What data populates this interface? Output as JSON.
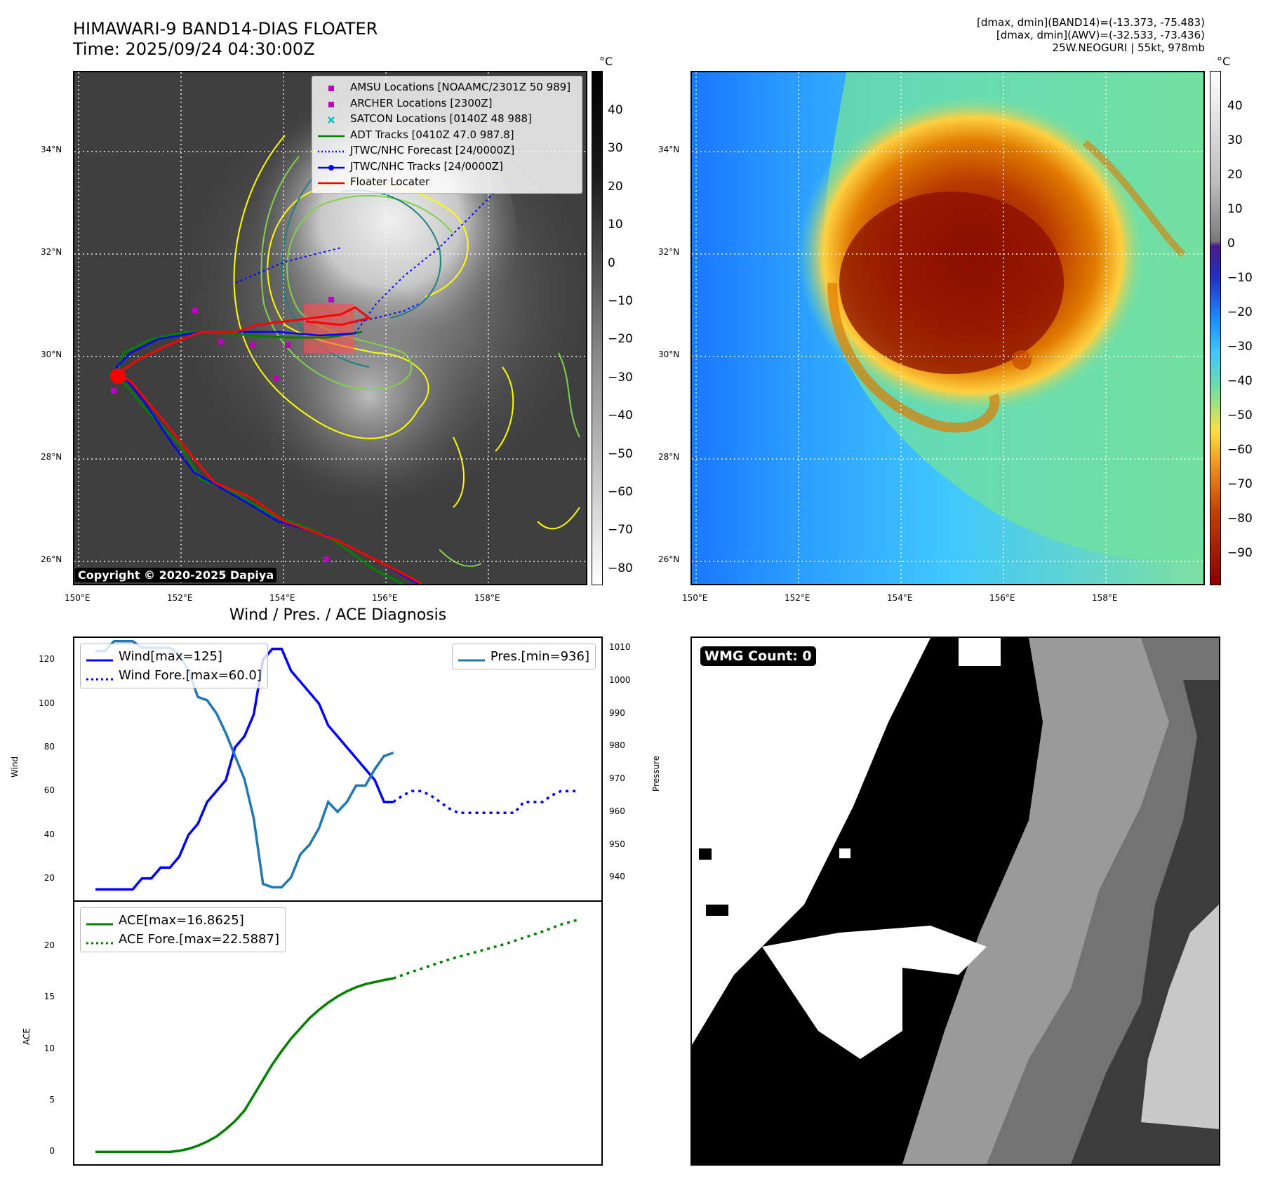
{
  "header": {
    "title_line1": "HIMAWARI-9 BAND14-DIAS FLOATER",
    "title_line2": "Time: 2025/09/24 04:30:00Z",
    "meta_line1": "[dmax, dmin](BAND14)=(-13.373, -75.483)",
    "meta_line2": "[dmax, dmin](AWV)=(-32.533, -73.436)",
    "meta_line3": "25W.NEOGURI | 55kt, 978mb"
  },
  "maps": {
    "lat_labels": [
      "34°N",
      "32°N",
      "30°N",
      "28°N",
      "26°N"
    ],
    "lon_labels": [
      "150°E",
      "152°E",
      "154°E",
      "156°E",
      "158°E"
    ],
    "left_cbar": {
      "unit": "°C",
      "ticks": [
        "40",
        "30",
        "20",
        "10",
        "0",
        "−10",
        "−20",
        "−30",
        "−40",
        "−50",
        "−60",
        "−70",
        "−80"
      ]
    },
    "right_cbar": {
      "unit": "°C",
      "ticks": [
        "40",
        "30",
        "20",
        "10",
        "0",
        "−10",
        "−20",
        "−30",
        "−40",
        "−50",
        "−60",
        "−70",
        "−80",
        "−90"
      ]
    },
    "legend": [
      {
        "label": "AMSU Locations [NOAAMC/2301Z 50 989]",
        "color": "#bf00bf",
        "kind": "square"
      },
      {
        "label": "ARCHER Locations [2300Z]",
        "color": "#bf00bf",
        "kind": "square"
      },
      {
        "label": "SATCON Locations [0140Z 48 988]",
        "color": "#00bfbf",
        "kind": "cross"
      },
      {
        "label": "ADT Tracks [0410Z 47.0 987.8]",
        "color": "#008000",
        "kind": "line"
      },
      {
        "label": "JTWC/NHC Forecast [24/0000Z]",
        "color": "#0000ff",
        "kind": "dotted"
      },
      {
        "label": "JTWC/NHC Tracks [24/0000Z]",
        "color": "#0000ff",
        "kind": "linedot"
      },
      {
        "label": "Floater Locater",
        "color": "#ff0000",
        "kind": "line"
      }
    ],
    "copyright": "Copyright © 2020-2025 Dapiya"
  },
  "diagnosis": {
    "title": "Wind / Pres. / ACE Diagnosis",
    "wind_ylabel": "Wind",
    "pres_ylabel": "Pressure",
    "ace_ylabel": "ACE",
    "wind_ticks": [
      "120",
      "100",
      "80",
      "60",
      "40",
      "20"
    ],
    "pres_ticks": [
      "1010",
      "1000",
      "990",
      "980",
      "970",
      "960",
      "950",
      "940"
    ],
    "ace_ticks": [
      "20",
      "15",
      "10",
      "5",
      "0"
    ],
    "legend_wind": "Wind[max=125]",
    "legend_wind_fore": "Wind Fore.[max=60.0]",
    "legend_pres": "Pres.[min=936]",
    "legend_ace": "ACE[max=16.8625]",
    "legend_ace_fore": "ACE Fore.[max=22.5887]"
  },
  "wmg": {
    "label": "WMG Count: 0"
  },
  "colors": {
    "wind": "#0000ff",
    "pres": "#1f77b4",
    "ace": "#008000",
    "floater": "#ff0000"
  },
  "chart_data": [
    {
      "type": "line",
      "title": "Wind / Pres. / ACE Diagnosis",
      "ylabel": "Wind",
      "ylim": [
        10,
        130
      ],
      "series": [
        {
          "name": "Wind[max=125]",
          "axis": "left",
          "style": "solid",
          "x": [
            0,
            1,
            2,
            3,
            4,
            5,
            6,
            7,
            8,
            9,
            10,
            11,
            12,
            13,
            14,
            15,
            16,
            17,
            18,
            19,
            20,
            21,
            22,
            23,
            24,
            25,
            26,
            27,
            28,
            29,
            30,
            31,
            32
          ],
          "y": [
            15,
            15,
            15,
            15,
            15,
            20,
            20,
            25,
            25,
            30,
            40,
            45,
            55,
            60,
            65,
            80,
            85,
            95,
            120,
            125,
            125,
            115,
            110,
            105,
            100,
            90,
            85,
            80,
            75,
            70,
            65,
            55,
            55
          ]
        },
        {
          "name": "Wind Fore.[max=60.0]",
          "axis": "left",
          "style": "dotted",
          "x": [
            32,
            33,
            34,
            35,
            36,
            37,
            38,
            39,
            40,
            41,
            42,
            43,
            44,
            45,
            46,
            47,
            48,
            49,
            50,
            51,
            52
          ],
          "y": [
            55,
            58,
            60,
            60,
            58,
            55,
            52,
            50,
            50,
            50,
            50,
            50,
            50,
            50,
            55,
            55,
            55,
            58,
            60,
            60,
            60
          ]
        },
        {
          "name": "Pres.[min=936]",
          "axis": "right",
          "style": "solid",
          "ylim": [
            933,
            1013
          ],
          "x": [
            0,
            1,
            2,
            3,
            4,
            5,
            6,
            7,
            8,
            9,
            10,
            11,
            12,
            13,
            14,
            15,
            16,
            17,
            18,
            19,
            20,
            21,
            22,
            23,
            24,
            25,
            26,
            27,
            28,
            29,
            30,
            31,
            32
          ],
          "y": [
            1009,
            1009,
            1012,
            1012,
            1012,
            1010,
            1010,
            1010,
            1010,
            1008,
            1003,
            995,
            994,
            990,
            984,
            977,
            970,
            958,
            938,
            937,
            937,
            940,
            947,
            950,
            955,
            963,
            960,
            963,
            968,
            968,
            973,
            977,
            978
          ]
        }
      ]
    },
    {
      "type": "line",
      "ylabel": "ACE",
      "ylim": [
        -1.2,
        24.3
      ],
      "series": [
        {
          "name": "ACE[max=16.8625]",
          "style": "solid",
          "x": [
            0,
            1,
            2,
            3,
            4,
            5,
            6,
            7,
            8,
            9,
            10,
            11,
            12,
            13,
            14,
            15,
            16,
            17,
            18,
            19,
            20,
            21,
            22,
            23,
            24,
            25,
            26,
            27,
            28,
            29,
            30,
            31,
            32
          ],
          "y": [
            0,
            0,
            0,
            0,
            0,
            0,
            0,
            0,
            0,
            0.1,
            0.3,
            0.6,
            1.0,
            1.5,
            2.2,
            3.0,
            4.0,
            5.5,
            7.0,
            8.5,
            9.8,
            11.0,
            12.0,
            13.0,
            13.8,
            14.5,
            15.1,
            15.6,
            16.0,
            16.3,
            16.5,
            16.7,
            16.86
          ]
        },
        {
          "name": "ACE Fore.[max=22.5887]",
          "style": "dotted",
          "x": [
            32,
            34,
            36,
            38,
            40,
            42,
            44,
            46,
            48,
            50,
            52
          ],
          "y": [
            16.86,
            17.5,
            18.1,
            18.7,
            19.2,
            19.7,
            20.2,
            20.8,
            21.4,
            22.1,
            22.59
          ]
        }
      ]
    }
  ]
}
